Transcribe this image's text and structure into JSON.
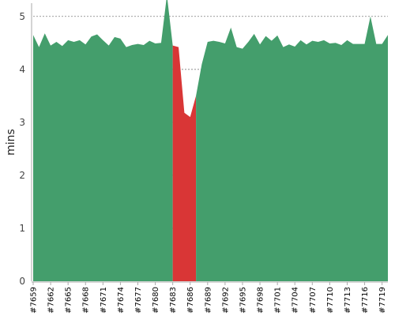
{
  "chart_data": {
    "type": "area",
    "title": "",
    "xlabel": "",
    "ylabel": "mins",
    "ylim": [
      0,
      5.25
    ],
    "yticks": [
      0,
      1,
      2,
      3,
      4,
      5
    ],
    "grid": true,
    "legend": "none",
    "colors": {
      "good": "#449e6c",
      "bad": "#d93636",
      "grid": "#555555",
      "axis": "#aaaaaa"
    },
    "series_segments": [
      {
        "status": "good",
        "from_build": 7659,
        "to_build": 7683
      },
      {
        "status": "bad",
        "from_build": 7683,
        "to_build": 7687
      },
      {
        "status": "good",
        "from_build": 7687,
        "to_build": 7720
      }
    ],
    "x": [
      7659,
      7660,
      7661,
      7662,
      7663,
      7664,
      7665,
      7666,
      7667,
      7668,
      7669,
      7670,
      7671,
      7672,
      7673,
      7674,
      7675,
      7676,
      7677,
      7678,
      7679,
      7680,
      7681,
      7682,
      7683,
      7684,
      7685,
      7686,
      7687,
      7688,
      7689,
      7690,
      7691,
      7692,
      7693,
      7694,
      7695,
      7696,
      7697,
      7698,
      7699,
      7700,
      7701,
      7702,
      7703,
      7704,
      7705,
      7706,
      7707,
      7708,
      7709,
      7710,
      7711,
      7712,
      7713,
      7714,
      7715,
      7716,
      7717,
      7718,
      7719,
      7720
    ],
    "values": [
      4.65,
      4.42,
      4.68,
      4.45,
      4.52,
      4.44,
      4.55,
      4.52,
      4.55,
      4.47,
      4.62,
      4.66,
      4.55,
      4.45,
      4.61,
      4.58,
      4.42,
      4.46,
      4.48,
      4.46,
      4.54,
      4.49,
      4.5,
      5.4,
      4.45,
      4.42,
      3.18,
      3.1,
      3.5,
      4.1,
      4.52,
      4.54,
      4.52,
      4.49,
      4.79,
      4.42,
      4.39,
      4.52,
      4.67,
      4.47,
      4.63,
      4.54,
      4.64,
      4.42,
      4.47,
      4.43,
      4.55,
      4.47,
      4.54,
      4.52,
      4.55,
      4.49,
      4.5,
      4.46,
      4.55,
      4.48,
      4.48,
      4.48,
      5.0,
      4.48,
      4.48,
      4.65
    ],
    "xtick_labels": [
      "#7659",
      "#7662",
      "#7665",
      "#7668",
      "#7671",
      "#7674",
      "#7677",
      "#7680",
      "#7683",
      "#7686",
      "#7689",
      "#7692",
      "#7695",
      "#7698",
      "#7701",
      "#7704",
      "#7707",
      "#7710",
      "#7713",
      "#7716",
      "#7719"
    ]
  }
}
